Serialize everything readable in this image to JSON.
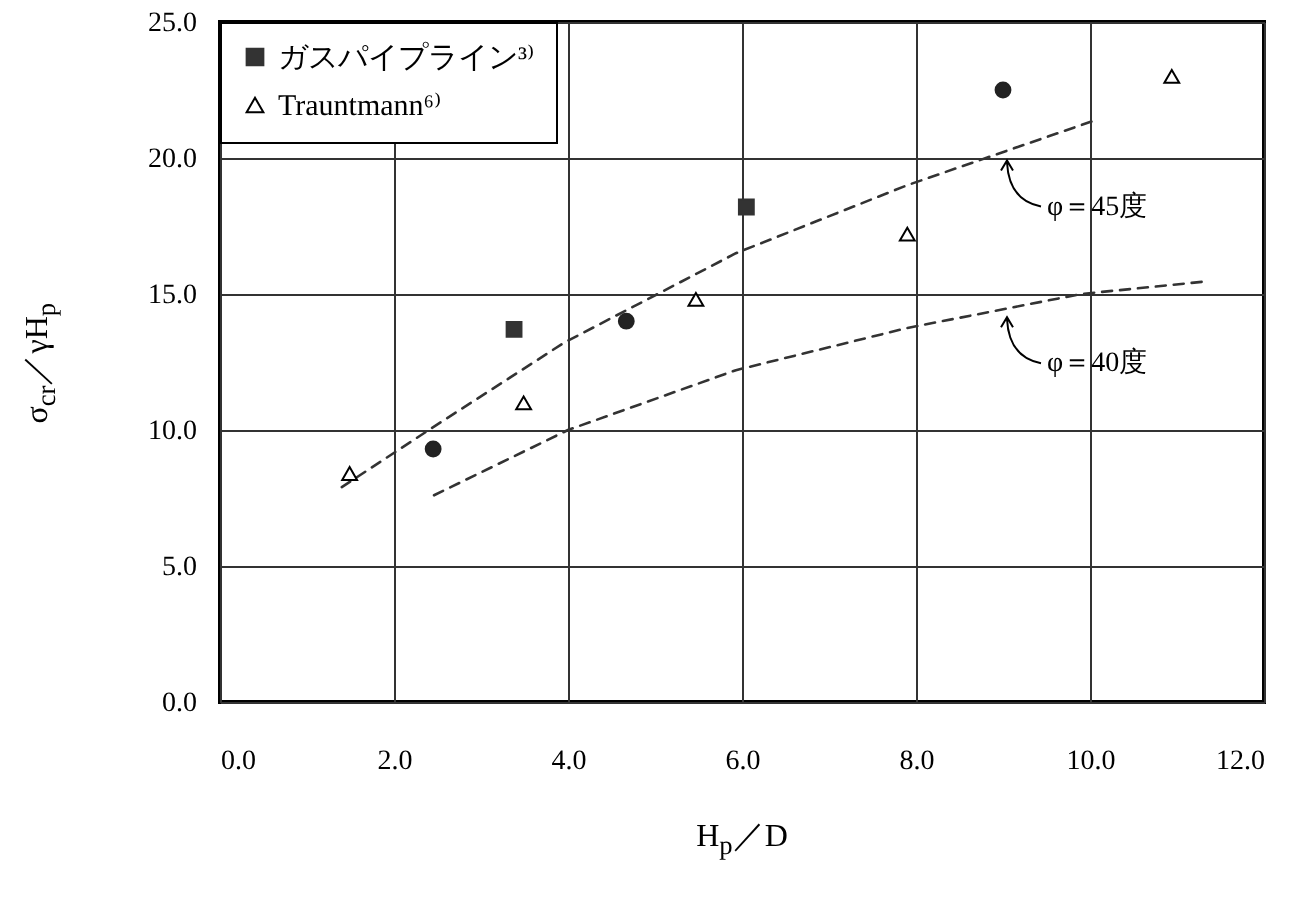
{
  "chart_data": {
    "type": "scatter",
    "xlabel": "H$_{p}$／D",
    "ylabel": "σ$_{cr}$／γH$_{p}$",
    "xlim": [
      0,
      12
    ],
    "xticks": [
      {
        "value": 0,
        "label": "0.0"
      },
      {
        "value": 2,
        "label": "2.0"
      },
      {
        "value": 4,
        "label": "4.0"
      },
      {
        "value": 6,
        "label": "6.0"
      },
      {
        "value": 8,
        "label": "8.0"
      },
      {
        "value": 10,
        "label": "10.0"
      },
      {
        "value": 12,
        "label": "12.0"
      }
    ],
    "ylim": [
      0,
      25
    ],
    "yticks": [
      {
        "value": 0,
        "label": "0.0"
      },
      {
        "value": 5,
        "label": "5.0"
      },
      {
        "value": 10,
        "label": "10.0"
      },
      {
        "value": 15,
        "label": "15.0"
      },
      {
        "value": 20,
        "label": "20.0"
      },
      {
        "value": 25,
        "label": "25.0"
      }
    ],
    "grid": true,
    "legend": "top left",
    "series": [
      {
        "color": "#222222",
        "marker": "circle",
        "x": [
          2.45,
          4.67,
          9.0
        ],
        "values": [
          9.3,
          14.0,
          22.5
        ]
      },
      {
        "name": "ガスパイプライン³⁾",
        "color": "#333333",
        "marker": "square",
        "x": [
          3.38,
          6.05
        ],
        "values": [
          13.7,
          18.2
        ]
      },
      {
        "name": "Trauntmann⁶⁾",
        "color": "#000000",
        "marker": "triangle",
        "x": [
          1.49,
          3.49,
          5.47,
          7.9,
          10.94
        ],
        "values": [
          8.4,
          11.0,
          14.8,
          17.2,
          23.0
        ]
      },
      {
        "type": "line",
        "color": "#333333",
        "line_style": "dashed",
        "marker": "none",
        "x": [
          1.4,
          2.4,
          3.95,
          5.93,
          7.9,
          10.07
        ],
        "values": [
          7.9,
          10.0,
          13.2,
          16.5,
          19.0,
          21.4
        ]
      },
      {
        "type": "line",
        "color": "#333333",
        "line_style": "dashed",
        "marker": "none",
        "x": [
          2.46,
          4.0,
          5.93,
          7.9,
          9.9,
          11.3
        ],
        "values": [
          7.6,
          10.0,
          12.2,
          13.75,
          15.0,
          15.45
        ]
      }
    ],
    "annotations": [
      {
        "text": "φ＝45度",
        "x": 9.0,
        "y": 20.2
      },
      {
        "text": "φ＝40度",
        "x": 9.0,
        "y": 14.44
      }
    ]
  }
}
